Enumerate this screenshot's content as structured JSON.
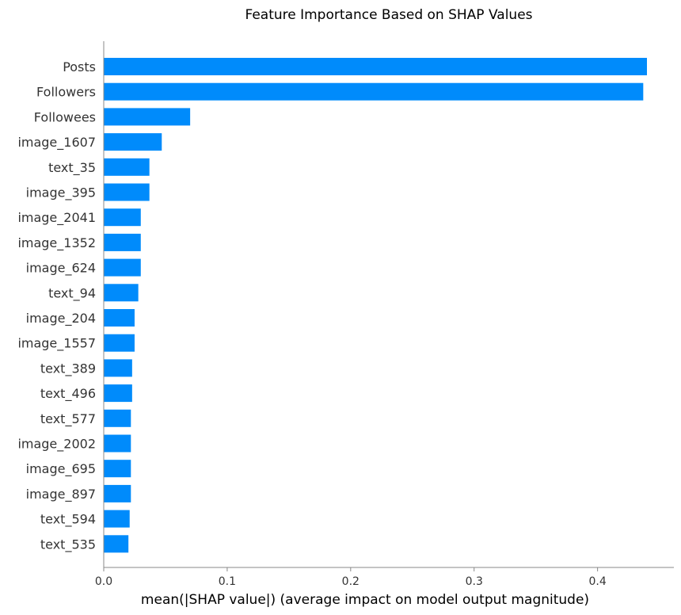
{
  "chart_data": {
    "type": "bar",
    "orientation": "horizontal",
    "title": "Feature Importance Based on SHAP Values",
    "xlabel": "mean(|SHAP value|) (average impact on model output magnitude)",
    "ylabel": "",
    "xlim": [
      0,
      0.44
    ],
    "xticks": [
      "0.0",
      "0.1",
      "0.2",
      "0.3",
      "0.4"
    ],
    "xtick_values": [
      0.0,
      0.1,
      0.2,
      0.3,
      0.4
    ],
    "grid": false,
    "bar_color": "#008bfb",
    "categories": [
      "Posts",
      "Followers",
      "Followees",
      "image_1607",
      "text_35",
      "image_395",
      "image_2041",
      "image_1352",
      "image_624",
      "text_94",
      "image_204",
      "image_1557",
      "text_389",
      "text_496",
      "text_577",
      "image_2002",
      "image_695",
      "image_897",
      "text_594",
      "text_535"
    ],
    "values": [
      0.44,
      0.437,
      0.07,
      0.047,
      0.037,
      0.037,
      0.03,
      0.03,
      0.03,
      0.028,
      0.025,
      0.025,
      0.023,
      0.023,
      0.022,
      0.022,
      0.022,
      0.022,
      0.021,
      0.02
    ]
  }
}
